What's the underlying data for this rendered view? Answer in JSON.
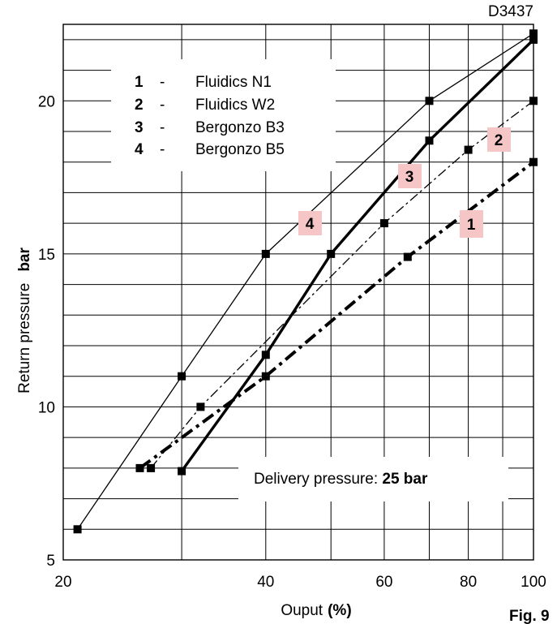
{
  "chart_data": {
    "type": "line",
    "code": "D3437",
    "fig_label": "Fig. 9",
    "xlabel": "Ouput",
    "xunit": "(%)",
    "ylabel": "Return pressure",
    "yunit": "bar",
    "x_scale": "log",
    "xlim": [
      20,
      100
    ],
    "ylim": [
      5,
      22.5
    ],
    "x_ticks": [
      {
        "value": 20,
        "label": "20"
      },
      {
        "value": 40,
        "label": "40"
      },
      {
        "value": 60,
        "label": "60"
      },
      {
        "value": 80,
        "label": "80"
      },
      {
        "value": 100,
        "label": "100"
      }
    ],
    "y_ticks": [
      {
        "value": 5,
        "label": "5"
      },
      {
        "value": 10,
        "label": "10"
      },
      {
        "value": 15,
        "label": "15"
      },
      {
        "value": 20,
        "label": "20"
      }
    ],
    "grid": true,
    "legend": {
      "placement": "top-left",
      "entries": [
        {
          "num": "1",
          "dash": "-",
          "name": "Fluidics N1"
        },
        {
          "num": "2",
          "dash": "-",
          "name": "Fluidics W2"
        },
        {
          "num": "3",
          "dash": "-",
          "name": "Bergonzo B3"
        },
        {
          "num": "4",
          "dash": "-",
          "name": "Bergonzo B5"
        }
      ]
    },
    "annotation": {
      "text": "Delivery pressure: ",
      "bold": "25 bar"
    },
    "series": [
      {
        "name": "1",
        "style": "dash-dot-thick",
        "points": [
          [
            26,
            8
          ],
          [
            40,
            11
          ],
          [
            65,
            14.9
          ],
          [
            100,
            18
          ]
        ]
      },
      {
        "name": "2",
        "style": "dash-dot-thin",
        "points": [
          [
            27,
            8
          ],
          [
            32,
            10
          ],
          [
            60,
            16
          ],
          [
            80,
            18.4
          ],
          [
            100,
            20
          ]
        ]
      },
      {
        "name": "3",
        "style": "solid-thick",
        "points": [
          [
            30,
            7.9
          ],
          [
            40,
            11.7
          ],
          [
            50,
            15
          ],
          [
            70,
            18.7
          ],
          [
            100,
            22
          ]
        ]
      },
      {
        "name": "4",
        "style": "solid-thin",
        "points": [
          [
            21,
            6
          ],
          [
            30,
            11
          ],
          [
            40,
            15
          ],
          [
            70,
            20
          ],
          [
            100,
            22.2
          ]
        ]
      }
    ]
  }
}
